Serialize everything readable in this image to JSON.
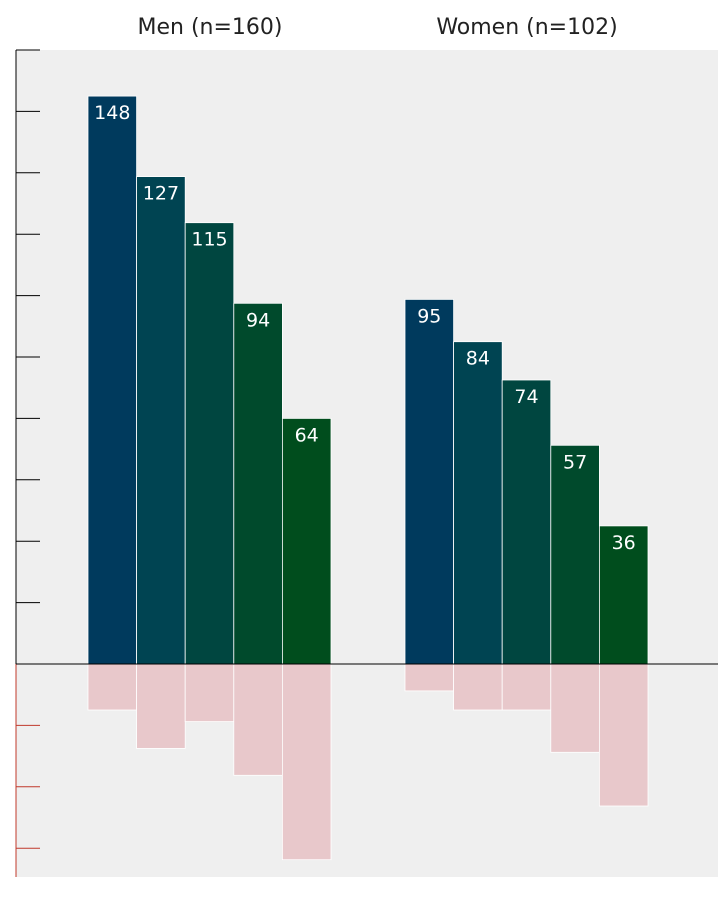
{
  "chart_data": {
    "type": "bar",
    "panels": [
      {
        "title": "Men (n=160)",
        "positive": [
          148,
          127,
          115,
          94,
          64
        ],
        "negative": [
          12,
          22,
          15,
          29,
          51
        ]
      },
      {
        "title": "Women (n=102)",
        "positive": [
          95,
          84,
          74,
          57,
          36
        ],
        "negative": [
          7,
          12,
          12,
          23,
          37
        ]
      }
    ],
    "ylim": [
      -48,
      100
    ],
    "ylim_positive_max": 160,
    "bar_colors": [
      "#003a5d",
      "#004452",
      "#004640",
      "#004a2c",
      "#004d1d"
    ],
    "negative_color": "#e8c8cb",
    "background_color": "#efefef"
  }
}
